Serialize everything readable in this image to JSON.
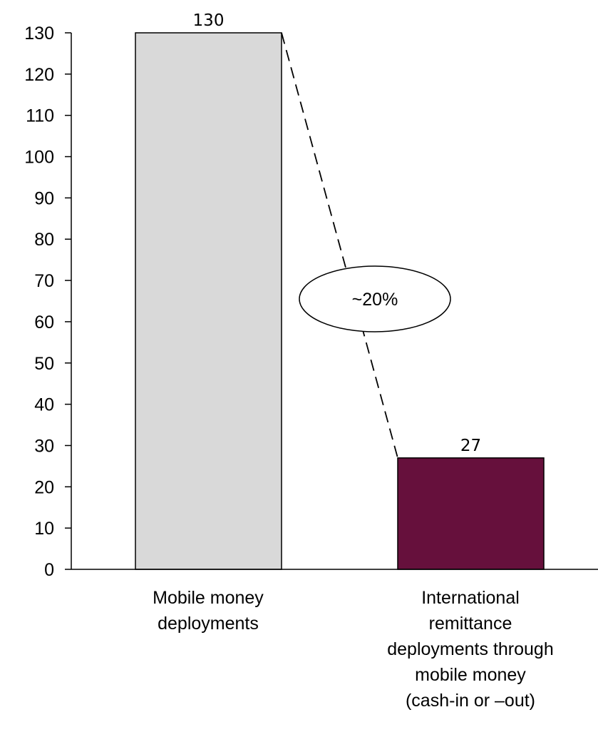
{
  "chart_data": {
    "type": "bar",
    "categories": [
      [
        "Mobile money",
        "deployments"
      ],
      [
        "International",
        "remittance",
        "deployments through",
        "mobile money",
        "(cash-in or –out)"
      ]
    ],
    "values": [
      130,
      27
    ],
    "data_labels": [
      "130",
      "27"
    ],
    "bar_colors": [
      "#d9d9d9",
      "#66103c"
    ],
    "bar_outline_color": "#000000",
    "y_ticks": [
      0,
      10,
      20,
      30,
      40,
      50,
      60,
      70,
      80,
      90,
      100,
      110,
      120,
      130
    ],
    "ylim": [
      0,
      130
    ],
    "title": "",
    "xlabel": "",
    "ylabel": "",
    "grid": false,
    "legend": "none",
    "annotation": {
      "text": "~20%",
      "style": "dashed connector from top of first bar to top of second bar with oval label"
    }
  }
}
